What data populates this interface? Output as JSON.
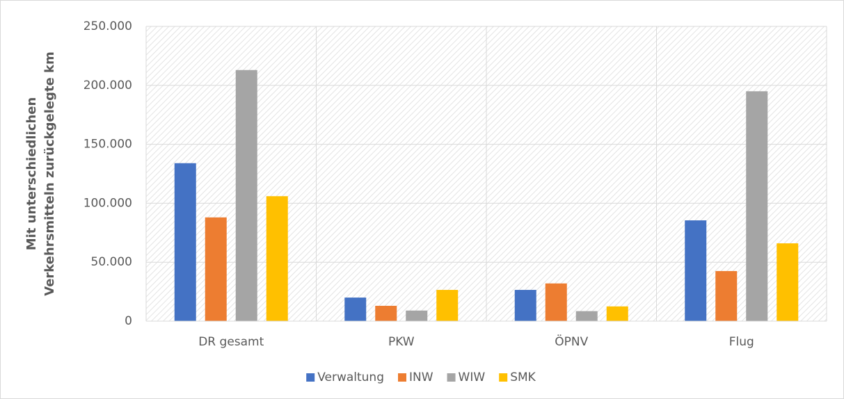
{
  "chart_data": {
    "type": "bar",
    "ylabel": [
      "Mit unterschiedlichen",
      "Verkehrsmitteln zurückgelegte km"
    ],
    "categories": [
      "DR gesamt",
      "PKW",
      "ÖPNV",
      "Flug"
    ],
    "series": [
      {
        "name": "Verwaltung",
        "color": "#4472c4",
        "values": [
          134000,
          20000,
          26500,
          85500
        ]
      },
      {
        "name": "INW",
        "color": "#ed7d31",
        "values": [
          88000,
          13000,
          32000,
          42500
        ]
      },
      {
        "name": "WIW",
        "color": "#a5a5a5",
        "values": [
          213000,
          9000,
          8500,
          195000
        ]
      },
      {
        "name": "SMK",
        "color": "#ffc000",
        "values": [
          106000,
          26500,
          12500,
          66000
        ]
      }
    ],
    "ylim": [
      0,
      250000
    ],
    "yticks": [
      0,
      {
        "value": 50000,
        "label": "50.000"
      },
      {
        "value": 100000,
        "label": "100.000"
      },
      {
        "value": 150000,
        "label": "150.000"
      },
      {
        "value": 200000,
        "label": "200.000"
      },
      {
        "value": 250000,
        "label": "250.000"
      }
    ],
    "grid": true,
    "legend": "bottom"
  }
}
